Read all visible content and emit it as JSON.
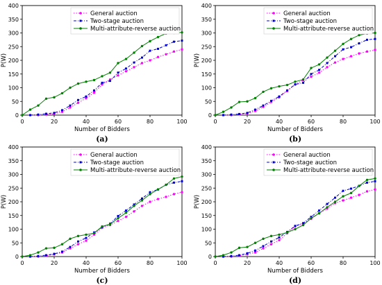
{
  "chart_data": [
    {
      "type": "line",
      "panel_label": "(a)",
      "xlabel": "Number of Bidders",
      "ylabel": "P(W)",
      "xlim": [
        0,
        100
      ],
      "ylim": [
        0,
        400
      ],
      "xticks": [
        0,
        20,
        40,
        60,
        80,
        100
      ],
      "yticks": [
        0,
        50,
        100,
        150,
        200,
        250,
        300,
        350,
        400
      ],
      "legend_position": "top-right",
      "grid": false,
      "series": [
        {
          "name": "General auction",
          "color": "#ff00ff",
          "line_style": "dotted",
          "marker": "circle",
          "x": [
            5,
            10,
            15,
            20,
            25,
            30,
            35,
            40,
            45,
            50,
            55,
            60,
            65,
            70,
            75,
            80,
            85,
            90,
            95,
            100
          ],
          "y": [
            0,
            0,
            2,
            5,
            12,
            28,
            45,
            62,
            82,
            112,
            130,
            145,
            160,
            175,
            190,
            200,
            212,
            222,
            232,
            240
          ]
        },
        {
          "name": "Two-stage auction",
          "color": "#0000cc",
          "line_style": "dashdot",
          "marker": "square",
          "x": [
            5,
            10,
            15,
            20,
            25,
            30,
            35,
            40,
            45,
            50,
            55,
            60,
            65,
            70,
            75,
            80,
            85,
            90,
            95,
            100
          ],
          "y": [
            0,
            2,
            5,
            8,
            18,
            35,
            55,
            68,
            90,
            118,
            125,
            155,
            170,
            192,
            210,
            235,
            242,
            255,
            268,
            272
          ]
        },
        {
          "name": "Multi-attribute-reverse auction",
          "color": "#008000",
          "line_style": "solid",
          "marker": "circle",
          "x": [
            0,
            5,
            10,
            15,
            20,
            25,
            30,
            35,
            40,
            45,
            50,
            55,
            60,
            65,
            70,
            75,
            80,
            85,
            90,
            95,
            100
          ],
          "y": [
            0,
            20,
            35,
            60,
            65,
            80,
            100,
            115,
            122,
            128,
            142,
            155,
            190,
            205,
            228,
            252,
            270,
            285,
            298,
            300,
            302
          ]
        }
      ]
    },
    {
      "type": "line",
      "panel_label": "(b)",
      "xlabel": "Number of Bidders",
      "ylabel": "P(W)",
      "xlim": [
        0,
        100
      ],
      "ylim": [
        0,
        400
      ],
      "xticks": [
        0,
        20,
        40,
        60,
        80,
        100
      ],
      "yticks": [
        0,
        50,
        100,
        150,
        200,
        250,
        300,
        350,
        400
      ],
      "legend_position": "top-right",
      "grid": false,
      "series": [
        {
          "name": "General auction",
          "color": "#ff00ff",
          "line_style": "dotted",
          "marker": "circle",
          "x": [
            5,
            10,
            15,
            20,
            25,
            30,
            35,
            40,
            45,
            50,
            55,
            60,
            65,
            70,
            75,
            80,
            85,
            90,
            95,
            100
          ],
          "y": [
            0,
            0,
            3,
            6,
            15,
            30,
            48,
            65,
            88,
            112,
            128,
            140,
            155,
            175,
            192,
            205,
            215,
            225,
            232,
            238
          ]
        },
        {
          "name": "Two-stage auction",
          "color": "#0000cc",
          "line_style": "dashdot",
          "marker": "square",
          "x": [
            5,
            10,
            15,
            20,
            25,
            30,
            35,
            40,
            45,
            50,
            55,
            60,
            65,
            70,
            75,
            80,
            85,
            90,
            95,
            100
          ],
          "y": [
            0,
            2,
            4,
            8,
            20,
            35,
            52,
            68,
            90,
            112,
            118,
            150,
            165,
            190,
            215,
            240,
            248,
            262,
            275,
            278
          ]
        },
        {
          "name": "Multi-attribute-reverse auction",
          "color": "#008000",
          "line_style": "solid",
          "marker": "circle",
          "x": [
            0,
            5,
            10,
            15,
            20,
            25,
            30,
            35,
            40,
            45,
            50,
            55,
            60,
            65,
            70,
            75,
            80,
            85,
            90,
            95,
            100
          ],
          "y": [
            0,
            12,
            28,
            48,
            50,
            62,
            85,
            98,
            105,
            110,
            122,
            130,
            172,
            185,
            210,
            235,
            260,
            278,
            292,
            298,
            300
          ]
        }
      ]
    },
    {
      "type": "line",
      "panel_label": "(c)",
      "xlabel": "Number of Bidders",
      "ylabel": "P(W)",
      "xlim": [
        0,
        100
      ],
      "ylim": [
        0,
        400
      ],
      "xticks": [
        0,
        20,
        40,
        60,
        80,
        100
      ],
      "yticks": [
        0,
        50,
        100,
        150,
        200,
        250,
        300,
        350,
        400
      ],
      "legend_position": "top-right",
      "grid": false,
      "series": [
        {
          "name": "General auction",
          "color": "#ff00ff",
          "line_style": "dotted",
          "marker": "circle",
          "x": [
            5,
            10,
            15,
            20,
            25,
            30,
            35,
            40,
            45,
            50,
            55,
            60,
            65,
            70,
            75,
            80,
            85,
            90,
            95,
            100
          ],
          "y": [
            0,
            0,
            3,
            8,
            15,
            30,
            45,
            58,
            80,
            105,
            115,
            130,
            145,
            165,
            185,
            200,
            210,
            218,
            228,
            235
          ]
        },
        {
          "name": "Two-stage auction",
          "color": "#0000cc",
          "line_style": "dashdot",
          "marker": "square",
          "x": [
            5,
            10,
            15,
            20,
            25,
            30,
            35,
            40,
            45,
            50,
            55,
            60,
            65,
            70,
            75,
            80,
            85,
            90,
            95,
            100
          ],
          "y": [
            0,
            2,
            5,
            10,
            18,
            35,
            55,
            68,
            88,
            108,
            120,
            148,
            168,
            190,
            212,
            235,
            245,
            262,
            270,
            275
          ]
        },
        {
          "name": "Multi-attribute-reverse auction",
          "color": "#008000",
          "line_style": "solid",
          "marker": "circle",
          "x": [
            0,
            5,
            10,
            15,
            20,
            25,
            30,
            35,
            40,
            45,
            50,
            55,
            60,
            65,
            70,
            75,
            80,
            85,
            90,
            95,
            100
          ],
          "y": [
            0,
            5,
            15,
            30,
            32,
            45,
            65,
            75,
            80,
            85,
            110,
            118,
            140,
            160,
            185,
            205,
            228,
            245,
            262,
            285,
            292
          ]
        }
      ]
    },
    {
      "type": "line",
      "panel_label": "(d)",
      "xlabel": "Number of Bidders",
      "ylabel": "P(W)",
      "xlim": [
        0,
        100
      ],
      "ylim": [
        0,
        400
      ],
      "xticks": [
        0,
        20,
        40,
        60,
        80,
        100
      ],
      "yticks": [
        0,
        50,
        100,
        150,
        200,
        250,
        300,
        350,
        400
      ],
      "legend_position": "top-right",
      "grid": false,
      "series": [
        {
          "name": "General auction",
          "color": "#ff00ff",
          "line_style": "dotted",
          "marker": "circle",
          "x": [
            5,
            10,
            15,
            20,
            25,
            30,
            35,
            40,
            45,
            50,
            55,
            60,
            65,
            70,
            75,
            80,
            85,
            90,
            95,
            100
          ],
          "y": [
            0,
            0,
            3,
            8,
            15,
            30,
            45,
            60,
            85,
            110,
            120,
            138,
            158,
            175,
            195,
            205,
            215,
            225,
            238,
            245
          ]
        },
        {
          "name": "Two-stage auction",
          "color": "#0000cc",
          "line_style": "dashdot",
          "marker": "square",
          "x": [
            5,
            10,
            15,
            20,
            25,
            30,
            35,
            40,
            45,
            50,
            55,
            60,
            65,
            70,
            75,
            80,
            85,
            90,
            95,
            100
          ],
          "y": [
            0,
            2,
            5,
            12,
            22,
            38,
            55,
            70,
            90,
            112,
            122,
            145,
            168,
            192,
            215,
            240,
            248,
            258,
            270,
            275
          ]
        },
        {
          "name": "Multi-attribute-reverse auction",
          "color": "#008000",
          "line_style": "solid",
          "marker": "circle",
          "x": [
            0,
            5,
            10,
            15,
            20,
            25,
            30,
            35,
            40,
            45,
            50,
            55,
            60,
            65,
            70,
            75,
            80,
            85,
            90,
            95,
            100
          ],
          "y": [
            0,
            5,
            15,
            32,
            35,
            50,
            65,
            75,
            80,
            88,
            100,
            115,
            140,
            158,
            180,
            200,
            220,
            232,
            258,
            280,
            285
          ]
        }
      ]
    }
  ]
}
